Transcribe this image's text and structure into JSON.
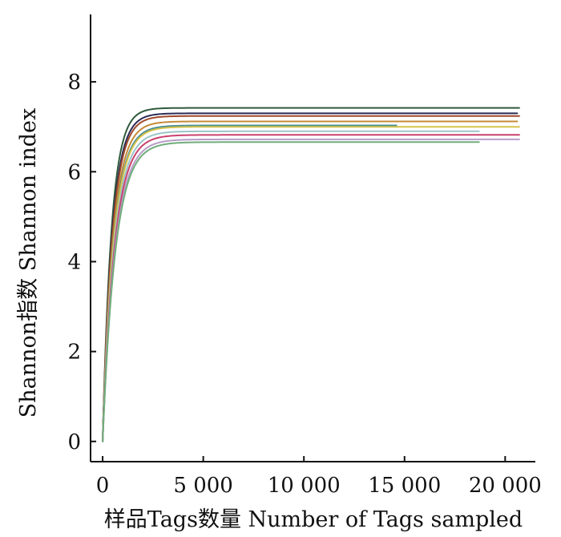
{
  "chart_data": {
    "type": "line",
    "title": "",
    "xlabel": "样品Tags数量  Number of Tags sampled",
    "ylabel": "Shannon指数  Shannon index",
    "xlim": [
      -600,
      21500
    ],
    "ylim": [
      -0.45,
      9.5
    ],
    "x_ticks": [
      0,
      5000,
      10000,
      15000,
      20000
    ],
    "x_tick_labels": [
      "0",
      "5 000",
      "10 000",
      "15 000",
      "20 000"
    ],
    "y_ticks": [
      0,
      2,
      4,
      6,
      8
    ],
    "y_tick_labels": [
      "0",
      "2",
      "4",
      "6",
      "8"
    ],
    "grid": false,
    "legend": "none",
    "series": [
      {
        "plateau": 7.42,
        "x_end": 20700,
        "color": "#2f5b3c"
      },
      {
        "plateau": 7.3,
        "x_end": 20600,
        "color": "#2b2b55"
      },
      {
        "plateau": 7.24,
        "x_end": 20700,
        "color": "#a04a2c"
      },
      {
        "plateau": 7.12,
        "x_end": 20600,
        "color": "#c48a3a"
      },
      {
        "plateau": 7.03,
        "x_end": 14600,
        "color": "#4a8f94"
      },
      {
        "plateau": 7.0,
        "x_end": 20700,
        "color": "#d4c34a"
      },
      {
        "plateau": 6.9,
        "x_end": 18700,
        "color": "#9cc5c8"
      },
      {
        "plateau": 6.82,
        "x_end": 20700,
        "color": "#c9406e"
      },
      {
        "plateau": 6.72,
        "x_end": 20700,
        "color": "#b79cc9"
      },
      {
        "plateau": 6.66,
        "x_end": 18700,
        "color": "#6fae7a"
      }
    ]
  }
}
